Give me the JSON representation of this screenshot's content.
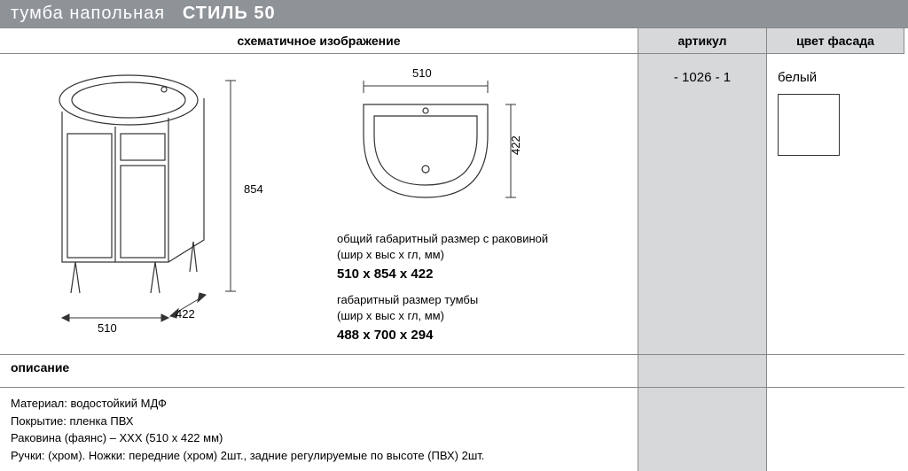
{
  "title": {
    "prefix": "тумба напольная",
    "model": "СТИЛЬ 50"
  },
  "headers": {
    "diagram": "схематичное изображение",
    "sku": "артикул",
    "color": "цвет фасада"
  },
  "sku": "- 1026 - 1",
  "color_label": "белый",
  "swatch_color": "#ffffff",
  "diagram": {
    "cabinet": {
      "width": "510",
      "height": "854",
      "depth": "422"
    },
    "basin_top": {
      "width": "510",
      "height": "422"
    }
  },
  "specs": {
    "overall_label1": "общий габаритный размер с раковиной",
    "overall_label2": "(шир х выс х гл, мм)",
    "overall_value": "510 x 854 x 422",
    "cabinet_label1": "габаритный размер тумбы",
    "cabinet_label2": "(шир х выс х гл, мм)",
    "cabinet_value": "488 x 700 x 294"
  },
  "description_heading": "описание",
  "description_lines": [
    "Материал: водостойкий МДФ",
    "Покрытие: пленка ПВХ",
    "Раковина (фаянс) – ХХХ (510 х 422 мм)",
    "Ручки:  (хром). Ножки: передние (хром) 2шт., задние регулируемые по высоте (ПВХ) 2шт."
  ],
  "colors": {
    "title_bg": "#8e9398",
    "gray_cell": "#d6d8da",
    "border": "#888888",
    "line": "#333333"
  }
}
